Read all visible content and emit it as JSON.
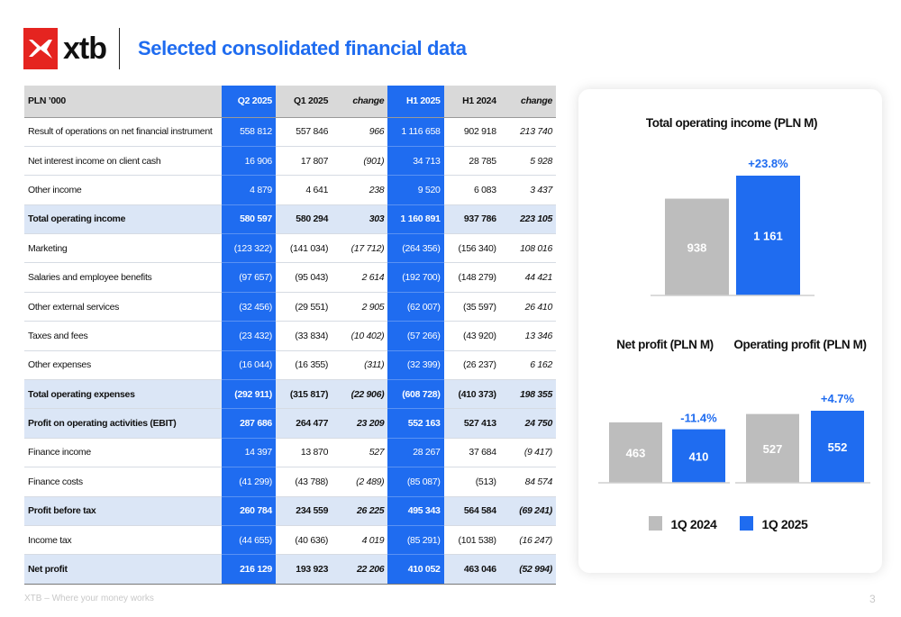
{
  "header": {
    "logo_text": "xtb",
    "title": "Selected consolidated financial data"
  },
  "table": {
    "columns": [
      "PLN ’000",
      "Q2 2025",
      "Q1 2025",
      "change",
      "H1 2025",
      "H1 2024",
      "change"
    ],
    "rows": [
      {
        "label": "Result of operations on net financial instrument",
        "bold": false,
        "values": [
          "558 812",
          "557 846",
          "966",
          "1 116 658",
          "902 918",
          "213 740"
        ]
      },
      {
        "label": "Net interest income on client cash",
        "bold": false,
        "values": [
          "16 906",
          "17 807",
          "(901)",
          "34 713",
          "28 785",
          "5 928"
        ]
      },
      {
        "label": "Other income",
        "bold": false,
        "values": [
          "4 879",
          "4 641",
          "238",
          "9 520",
          "6 083",
          "3 437"
        ]
      },
      {
        "label": "Total operating income",
        "bold": true,
        "values": [
          "580 597",
          "580 294",
          "303",
          "1 160 891",
          "937 786",
          "223 105"
        ]
      },
      {
        "label": "Marketing",
        "bold": false,
        "values": [
          "(123 322)",
          "(141 034)",
          "(17 712)",
          "(264 356)",
          "(156 340)",
          "108 016"
        ]
      },
      {
        "label": "Salaries and employee benefits",
        "bold": false,
        "values": [
          "(97 657)",
          "(95 043)",
          "2 614",
          "(192 700)",
          "(148 279)",
          "44 421"
        ]
      },
      {
        "label": "Other external services",
        "bold": false,
        "values": [
          "(32 456)",
          "(29 551)",
          "2 905",
          "(62 007)",
          "(35 597)",
          "26 410"
        ]
      },
      {
        "label": "Taxes and fees",
        "bold": false,
        "values": [
          "(23 432)",
          "(33 834)",
          "(10 402)",
          "(57 266)",
          "(43 920)",
          "13 346"
        ]
      },
      {
        "label": "Other expenses",
        "bold": false,
        "values": [
          "(16 044)",
          "(16 355)",
          "(311)",
          "(32 399)",
          "(26 237)",
          "6 162"
        ]
      },
      {
        "label": "Total operating expenses",
        "bold": true,
        "values": [
          "(292 911)",
          "(315 817)",
          "(22 906)",
          "(608 728)",
          "(410 373)",
          "198 355"
        ]
      },
      {
        "label": "Profit on operating activities (EBIT)",
        "bold": true,
        "values": [
          "287 686",
          "264 477",
          "23 209",
          "552 163",
          "527 413",
          "24 750"
        ]
      },
      {
        "label": "Finance income",
        "bold": false,
        "values": [
          "14 397",
          "13 870",
          "527",
          "28 267",
          "37 684",
          "(9 417)"
        ]
      },
      {
        "label": "Finance costs",
        "bold": false,
        "values": [
          "(41 299)",
          "(43 788)",
          "(2 489)",
          "(85 087)",
          "(513)",
          "84 574"
        ]
      },
      {
        "label": "Profit before tax",
        "bold": true,
        "values": [
          "260 784",
          "234 559",
          "26 225",
          "495 343",
          "564 584",
          "(69 241)"
        ]
      },
      {
        "label": "Income tax",
        "bold": false,
        "values": [
          "(44 655)",
          "(40 636)",
          "4 019",
          "(85 291)",
          "(101 538)",
          "(16 247)"
        ]
      },
      {
        "label": "Net profit",
        "bold": true,
        "values": [
          "216 129",
          "193 923",
          "22 206",
          "410 052",
          "463 046",
          "(52 994)"
        ]
      }
    ]
  },
  "colors": {
    "accent_blue": "#1f6cf0",
    "grey_bar": "#bdbdbd",
    "logo_red": "#e52420"
  },
  "chart_data": [
    {
      "type": "bar",
      "title": "Total operating income (PLN M)",
      "series": [
        {
          "name": "1Q 2024",
          "values": [
            938
          ]
        },
        {
          "name": "1Q 2025",
          "values": [
            1161
          ]
        }
      ],
      "value_labels": [
        "938",
        "1 161"
      ],
      "change_label": "+23.8%"
    },
    {
      "type": "bar",
      "title": "Net profit (PLN M)",
      "series": [
        {
          "name": "1Q 2024",
          "values": [
            463
          ]
        },
        {
          "name": "1Q 2025",
          "values": [
            410
          ]
        }
      ],
      "value_labels": [
        "463",
        "410"
      ],
      "change_label": "-11.4%"
    },
    {
      "type": "bar",
      "title": "Operating profit (PLN M)",
      "series": [
        {
          "name": "1Q 2024",
          "values": [
            527
          ]
        },
        {
          "name": "1Q 2025",
          "values": [
            552
          ]
        }
      ],
      "value_labels": [
        "527",
        "552"
      ],
      "change_label": "+4.7%"
    }
  ],
  "legend": {
    "placement": "bottom",
    "items": [
      {
        "label": "1Q 2024",
        "color": "#bdbdbd"
      },
      {
        "label": "1Q 2025",
        "color": "#1f6cf0"
      }
    ]
  },
  "footer": {
    "tagline": "XTB – Where your money works",
    "page_number": "3"
  }
}
